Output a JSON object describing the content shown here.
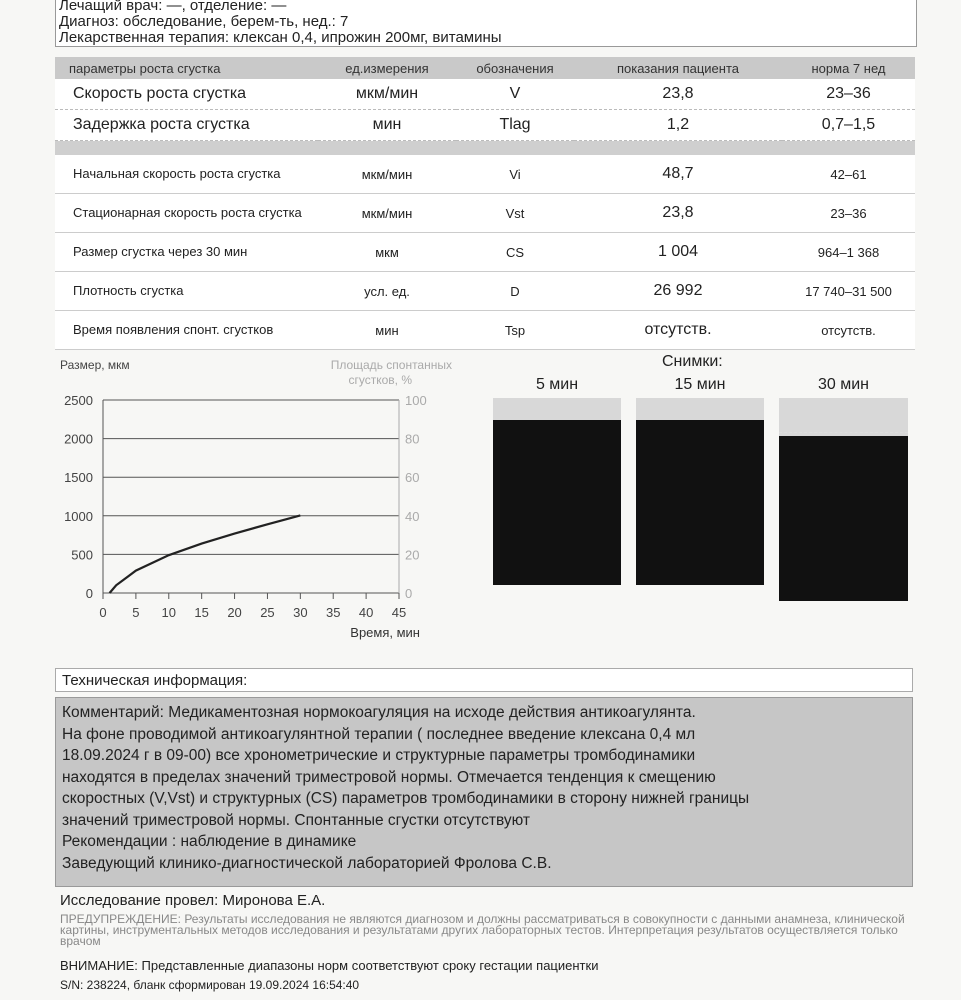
{
  "header": {
    "doctor": "Лечащий врач: —, отделение: —",
    "diagnosis": "Диагноз: обследование, берем-ть, нед.: 7",
    "therapy": "Лекарственная терапия: клексан 0,4, ипрожин 200мг, витамины"
  },
  "table": {
    "columns": [
      "параметры роста сгустка",
      "ед.измерения",
      "обозначения",
      "показания пациента",
      "норма 7 нед"
    ],
    "main_rows": [
      [
        "Скорость роста сгустка",
        "мкм/мин",
        "V",
        "23,8",
        "23–36"
      ],
      [
        "Задержка роста сгустка",
        "мин",
        "Tlag",
        "1,2",
        "0,7–1,5"
      ]
    ],
    "rows": [
      [
        "Начальная скорость роста сгустка",
        "мкм/мин",
        "Vi",
        "48,7",
        "42–61"
      ],
      [
        "Стационарная скорость роста сгустка",
        "мкм/мин",
        "Vst",
        "23,8",
        "23–36"
      ],
      [
        "Размер сгустка через 30 мин",
        "мкм",
        "CS",
        "1 004",
        "964–1 368"
      ],
      [
        "Плотность сгустка",
        "усл. ед.",
        "D",
        "26 992",
        "17 740–31 500"
      ],
      [
        "Время появления спонт. сгустков",
        "мин",
        "Tsp",
        "отсутств.",
        "отсутств."
      ]
    ]
  },
  "chart_data": {
    "type": "line",
    "ylabel": "Размер, мкм",
    "y2label": "Площадь спонтанных сгустков, %",
    "xlabel": "Время, мин",
    "xlim": [
      0,
      45
    ],
    "ylim": [
      0,
      2500
    ],
    "y2lim": [
      0,
      100
    ],
    "xticks": [
      "0",
      "5",
      "10",
      "15",
      "20",
      "25",
      "30",
      "35",
      "40",
      "45"
    ],
    "yticks": [
      "0",
      "500",
      "1000",
      "1500",
      "2000",
      "2500"
    ],
    "y2ticks": [
      "0",
      "20",
      "40",
      "60",
      "80",
      "100"
    ],
    "grid": true,
    "x": [
      1,
      2,
      5,
      10,
      15,
      20,
      25,
      30
    ],
    "y": [
      0,
      100,
      290,
      490,
      640,
      770,
      890,
      1004
    ]
  },
  "snapshots": {
    "title": "Снимки:",
    "labels": [
      "5 мин",
      "15 мин",
      "30 мин"
    ]
  },
  "tech": {
    "title": "Техническая информация:",
    "comment": [
      "Комментарий: Медикаментозная нормокоагуляция на исходе действия антикоагулянта.",
      "На фоне проводимой антикоагулянтной терапии ( последнее введение клексана 0,4 мл",
      "18.09.2024 г в 09-00) все хронометрические и структурные параметры тромбодинамики",
      "находятся в пределах значений триместровой нормы. Отмечается тенденция к смещению",
      "скоростных (V,Vst) и структурных (CS) параметров тромбодинамики в сторону нижней границы",
      "значений триместровой нормы. Спонтанные сгустки отсутствуют",
      "Рекомендации : наблюдение в динамике",
      "Заведующий клинико-диагностической лабораторией Фролова С.В."
    ]
  },
  "footer": {
    "performed": "Исследование провел: Миронова Е.А.",
    "warning": "ПРЕДУПРЕЖДЕНИЕ: Результаты исследования не являются диагнозом и должны рассматриваться в совокупности с данными анамнеза, клинической картины, инструментальных методов исследования и результатами других лабораторных тестов. Интерпретация результатов осуществляется только врачом",
    "attention": "ВНИМАНИЕ: Представленные диапазоны норм соответствуют сроку гестации пациентки",
    "sn": "S/N: 238224, бланк сформирован 19.09.2024 16:54:40"
  }
}
